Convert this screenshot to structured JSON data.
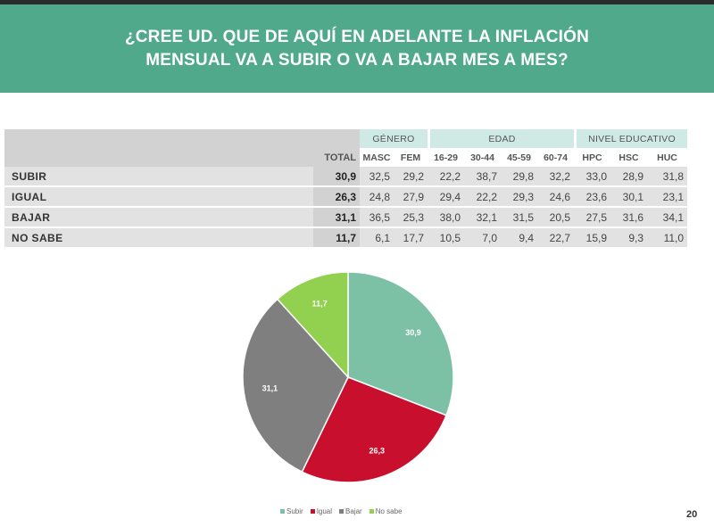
{
  "header": {
    "title_line1": "¿CREE UD. QUE DE AQUÍ EN ADELANTE LA INFLACIÓN",
    "title_line2": "MENSUAL VA A SUBIR O VA A BAJAR MES A MES?"
  },
  "table": {
    "groups": {
      "genero": "GÉNERO",
      "edad": "EDAD",
      "nivel": "NIVEL EDUCATIVO"
    },
    "total_label": "TOTAL",
    "columns": [
      "MASC",
      "FEM",
      "16-29",
      "30-44",
      "45-59",
      "60-74",
      "HPC",
      "HSC",
      "HUC"
    ],
    "rows": [
      {
        "label": "SUBIR",
        "total": "30,9",
        "values": [
          "32,5",
          "29,2",
          "22,2",
          "38,7",
          "29,8",
          "32,2",
          "33,0",
          "28,9",
          "31,8"
        ]
      },
      {
        "label": "IGUAL",
        "total": "26,3",
        "values": [
          "24,8",
          "27,9",
          "29,4",
          "22,2",
          "29,3",
          "24,6",
          "23,6",
          "30,1",
          "23,1"
        ]
      },
      {
        "label": "BAJAR",
        "total": "31,1",
        "values": [
          "36,5",
          "25,3",
          "38,0",
          "32,1",
          "31,5",
          "20,5",
          "27,5",
          "31,6",
          "34,1"
        ]
      },
      {
        "label": "NO SABE",
        "total": "11,7",
        "values": [
          "6,1",
          "17,7",
          "10,5",
          "7,0",
          "9,4",
          "22,7",
          "15,9",
          "9,3",
          "11,0"
        ]
      }
    ]
  },
  "chart_data": {
    "type": "pie",
    "categories": [
      "Subir",
      "Igual",
      "Bajar",
      "No sabe"
    ],
    "values": [
      30.9,
      26.3,
      31.1,
      11.7
    ],
    "labels": [
      "30,9",
      "26,3",
      "31,1",
      "11,7"
    ],
    "colors": [
      "#7cc0a6",
      "#c8102e",
      "#7f7f7f",
      "#92d050"
    ],
    "legend_position": "bottom"
  },
  "page_number": "20"
}
